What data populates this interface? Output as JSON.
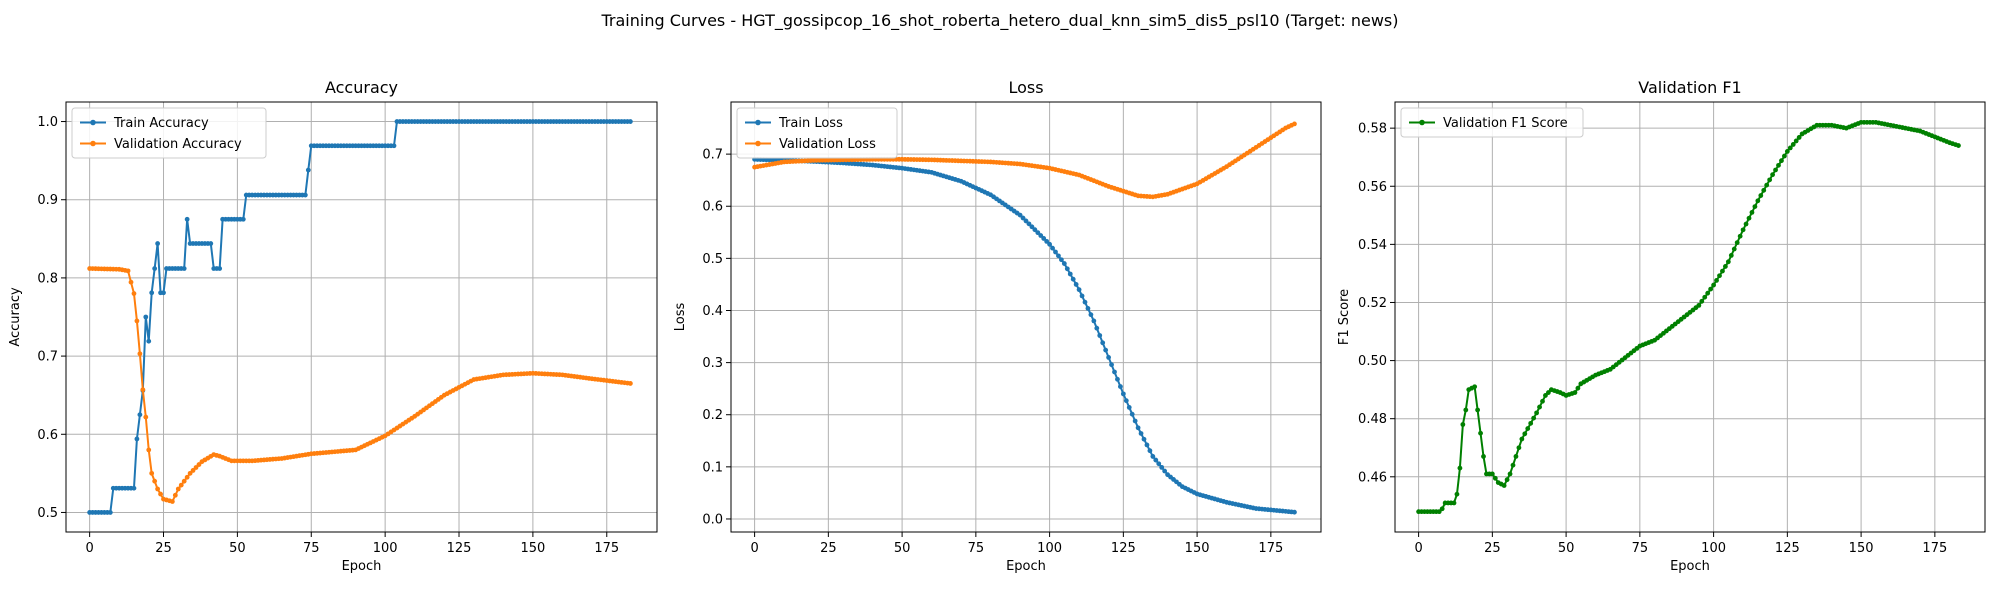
{
  "figure": {
    "suptitle": "Training Curves - HGT_gossipcop_16_shot_roberta_hetero_dual_knn_sim5_dis5_psl10 (Target: news)"
  },
  "colors": {
    "blue": "#1f77b4",
    "orange": "#ff7f0e",
    "green": "#008000",
    "grid": "#b0b0b0"
  },
  "chart_data": [
    {
      "type": "line",
      "title": "Accuracy",
      "xlabel": "Epoch",
      "ylabel": "Accuracy",
      "xlim": [
        -8,
        192
      ],
      "ylim": [
        0.475,
        1.025
      ],
      "xticks": [
        0,
        25,
        50,
        75,
        100,
        125,
        150,
        175
      ],
      "yticks": [
        0.5,
        0.6,
        0.7,
        0.8,
        0.9,
        1.0
      ],
      "ytick_labels": [
        "0.5",
        "0.6",
        "0.7",
        "0.8",
        "0.9",
        "1.0"
      ],
      "grid": true,
      "legend_loc": "upper-left",
      "series": [
        {
          "name": "Train Accuracy",
          "color": "#1f77b4",
          "keypoints": [
            [
              0,
              0.5
            ],
            [
              7,
              0.5
            ],
            [
              8,
              0.531
            ],
            [
              15,
              0.531
            ],
            [
              16,
              0.594
            ],
            [
              17,
              0.625
            ],
            [
              18,
              0.656
            ],
            [
              19,
              0.75
            ],
            [
              20,
              0.719
            ],
            [
              21,
              0.781
            ],
            [
              22,
              0.812
            ],
            [
              23,
              0.844
            ],
            [
              24,
              0.781
            ],
            [
              25,
              0.781
            ],
            [
              26,
              0.812
            ],
            [
              32,
              0.812
            ],
            [
              33,
              0.875
            ],
            [
              34,
              0.844
            ],
            [
              41,
              0.844
            ],
            [
              42,
              0.812
            ],
            [
              44,
              0.812
            ],
            [
              45,
              0.875
            ],
            [
              52,
              0.875
            ],
            [
              53,
              0.906
            ],
            [
              73,
              0.906
            ],
            [
              74,
              0.938
            ],
            [
              75,
              0.969
            ],
            [
              103,
              0.969
            ],
            [
              104,
              1.0
            ],
            [
              183,
              1.0
            ]
          ]
        },
        {
          "name": "Validation Accuracy",
          "color": "#ff7f0e",
          "keypoints": [
            [
              0,
              0.812
            ],
            [
              10,
              0.811
            ],
            [
              13,
              0.809
            ],
            [
              15,
              0.78
            ],
            [
              16,
              0.745
            ],
            [
              17,
              0.703
            ],
            [
              18,
              0.657
            ],
            [
              19,
              0.622
            ],
            [
              20,
              0.58
            ],
            [
              21,
              0.55
            ],
            [
              23,
              0.53
            ],
            [
              25,
              0.517
            ],
            [
              28,
              0.514
            ],
            [
              30,
              0.53
            ],
            [
              34,
              0.55
            ],
            [
              38,
              0.565
            ],
            [
              42,
              0.574
            ],
            [
              44,
              0.572
            ],
            [
              48,
              0.566
            ],
            [
              55,
              0.566
            ],
            [
              65,
              0.569
            ],
            [
              75,
              0.575
            ],
            [
              90,
              0.58
            ],
            [
              100,
              0.598
            ],
            [
              110,
              0.623
            ],
            [
              120,
              0.65
            ],
            [
              130,
              0.67
            ],
            [
              140,
              0.676
            ],
            [
              150,
              0.678
            ],
            [
              160,
              0.676
            ],
            [
              170,
              0.671
            ],
            [
              183,
              0.665
            ]
          ]
        }
      ]
    },
    {
      "type": "line",
      "title": "Loss",
      "xlabel": "Epoch",
      "ylabel": "Loss",
      "xlim": [
        -8,
        192
      ],
      "ylim": [
        -0.025,
        0.8
      ],
      "xticks": [
        0,
        25,
        50,
        75,
        100,
        125,
        150,
        175
      ],
      "yticks": [
        0.0,
        0.1,
        0.2,
        0.3,
        0.4,
        0.5,
        0.6,
        0.7
      ],
      "ytick_labels": [
        "0.0",
        "0.1",
        "0.2",
        "0.3",
        "0.4",
        "0.5",
        "0.6",
        "0.7"
      ],
      "grid": true,
      "legend_loc": "upper-left",
      "series": [
        {
          "name": "Train Loss",
          "color": "#1f77b4",
          "keypoints": [
            [
              0,
              0.69
            ],
            [
              10,
              0.688
            ],
            [
              20,
              0.686
            ],
            [
              30,
              0.683
            ],
            [
              40,
              0.679
            ],
            [
              50,
              0.673
            ],
            [
              60,
              0.665
            ],
            [
              70,
              0.648
            ],
            [
              80,
              0.622
            ],
            [
              90,
              0.583
            ],
            [
              100,
              0.527
            ],
            [
              105,
              0.49
            ],
            [
              110,
              0.44
            ],
            [
              115,
              0.38
            ],
            [
              120,
              0.31
            ],
            [
              125,
              0.24
            ],
            [
              130,
              0.175
            ],
            [
              135,
              0.12
            ],
            [
              140,
              0.085
            ],
            [
              145,
              0.062
            ],
            [
              150,
              0.048
            ],
            [
              160,
              0.032
            ],
            [
              170,
              0.02
            ],
            [
              183,
              0.013
            ]
          ]
        },
        {
          "name": "Validation Loss",
          "color": "#ff7f0e",
          "keypoints": [
            [
              0,
              0.675
            ],
            [
              5,
              0.68
            ],
            [
              10,
              0.685
            ],
            [
              20,
              0.688
            ],
            [
              30,
              0.689
            ],
            [
              40,
              0.69
            ],
            [
              50,
              0.69
            ],
            [
              60,
              0.689
            ],
            [
              70,
              0.687
            ],
            [
              80,
              0.685
            ],
            [
              90,
              0.681
            ],
            [
              100,
              0.673
            ],
            [
              110,
              0.66
            ],
            [
              120,
              0.638
            ],
            [
              130,
              0.62
            ],
            [
              135,
              0.618
            ],
            [
              140,
              0.623
            ],
            [
              150,
              0.643
            ],
            [
              160,
              0.676
            ],
            [
              170,
              0.713
            ],
            [
              180,
              0.75
            ],
            [
              183,
              0.758
            ]
          ]
        }
      ]
    },
    {
      "type": "line",
      "title": "Validation F1",
      "xlabel": "Epoch",
      "ylabel": "F1 Score",
      "xlim": [
        -8,
        192
      ],
      "ylim": [
        0.441,
        0.589
      ],
      "xticks": [
        0,
        25,
        50,
        75,
        100,
        125,
        150,
        175
      ],
      "yticks": [
        0.46,
        0.48,
        0.5,
        0.52,
        0.54,
        0.56,
        0.58
      ],
      "ytick_labels": [
        "0.46",
        "0.48",
        "0.50",
        "0.52",
        "0.54",
        "0.56",
        "0.58"
      ],
      "grid": true,
      "legend_loc": "upper-left",
      "series": [
        {
          "name": "Validation F1 Score",
          "color": "#008000",
          "keypoints": [
            [
              0,
              0.448
            ],
            [
              7,
              0.448
            ],
            [
              8,
              0.449
            ],
            [
              9,
              0.451
            ],
            [
              12,
              0.451
            ],
            [
              13,
              0.454
            ],
            [
              14,
              0.463
            ],
            [
              15,
              0.478
            ],
            [
              16,
              0.483
            ],
            [
              17,
              0.49
            ],
            [
              19,
              0.491
            ],
            [
              20,
              0.483
            ],
            [
              21,
              0.475
            ],
            [
              22,
              0.467
            ],
            [
              23,
              0.461
            ],
            [
              25,
              0.461
            ],
            [
              27,
              0.458
            ],
            [
              29,
              0.457
            ],
            [
              31,
              0.461
            ],
            [
              33,
              0.467
            ],
            [
              35,
              0.473
            ],
            [
              40,
              0.482
            ],
            [
              43,
              0.488
            ],
            [
              45,
              0.49
            ],
            [
              48,
              0.489
            ],
            [
              50,
              0.488
            ],
            [
              53,
              0.489
            ],
            [
              55,
              0.492
            ],
            [
              60,
              0.495
            ],
            [
              65,
              0.497
            ],
            [
              70,
              0.501
            ],
            [
              75,
              0.505
            ],
            [
              80,
              0.507
            ],
            [
              85,
              0.511
            ],
            [
              90,
              0.515
            ],
            [
              95,
              0.519
            ],
            [
              100,
              0.526
            ],
            [
              105,
              0.534
            ],
            [
              110,
              0.545
            ],
            [
              115,
              0.555
            ],
            [
              120,
              0.564
            ],
            [
              125,
              0.572
            ],
            [
              130,
              0.578
            ],
            [
              135,
              0.581
            ],
            [
              140,
              0.581
            ],
            [
              145,
              0.58
            ],
            [
              150,
              0.582
            ],
            [
              155,
              0.582
            ],
            [
              160,
              0.581
            ],
            [
              165,
              0.58
            ],
            [
              170,
              0.579
            ],
            [
              175,
              0.577
            ],
            [
              180,
              0.575
            ],
            [
              183,
              0.574
            ]
          ]
        }
      ]
    }
  ]
}
